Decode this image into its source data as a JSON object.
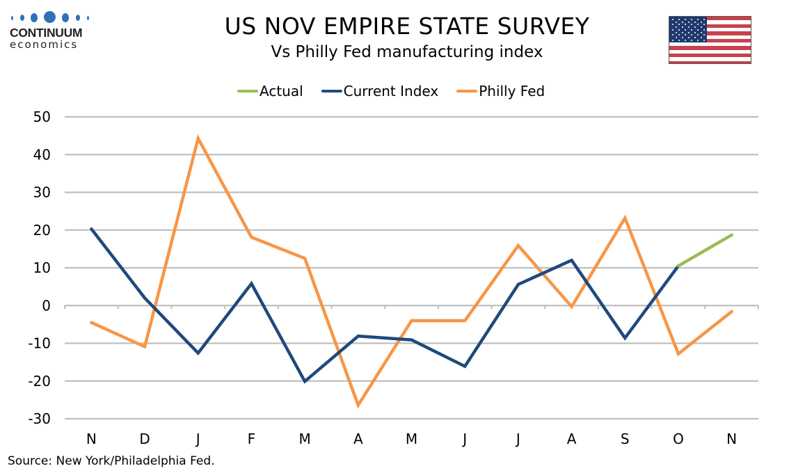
{
  "logo": {
    "name": "CONTINUUM",
    "sub": "economics"
  },
  "header": {
    "title": "US NOV EMPIRE STATE SURVEY",
    "subtitle": "Vs Philly Fed manufacturing index",
    "flag_icon": "us-flag-icon"
  },
  "source": "Source: New York/Philadelphia Fed.",
  "colors": {
    "actual": "#9bbb59",
    "current_index": "#1f497d",
    "philly_fed": "#f79646",
    "grid": "#bfbfbf"
  },
  "chart_data": {
    "type": "line",
    "title": "US NOV EMPIRE STATE SURVEY",
    "subtitle": "Vs Philly Fed manufacturing index",
    "xlabel": "",
    "ylabel": "",
    "categories": [
      "N",
      "D",
      "J",
      "F",
      "M",
      "A",
      "M",
      "J",
      "J",
      "A",
      "S",
      "O",
      "N"
    ],
    "ylim": [
      -30,
      50
    ],
    "yticks": [
      50,
      40,
      30,
      20,
      10,
      0,
      -10,
      -20,
      -30
    ],
    "grid": true,
    "legend_position": "top-center",
    "series": [
      {
        "name": "Actual",
        "color": "#9bbb59",
        "values": [
          null,
          null,
          null,
          null,
          null,
          null,
          null,
          null,
          null,
          null,
          null,
          10.5,
          18.7
        ]
      },
      {
        "name": "Current Index",
        "color": "#1f497d",
        "values": [
          20.3,
          2.0,
          -12.6,
          5.8,
          -20.1,
          -8.1,
          -9.1,
          -16.1,
          5.6,
          12.0,
          -8.6,
          10.5,
          null
        ]
      },
      {
        "name": "Philly Fed",
        "color": "#f79646",
        "values": [
          -4.5,
          -10.9,
          44.3,
          18.1,
          12.5,
          -26.4,
          -4.0,
          -4.0,
          15.9,
          -0.3,
          23.2,
          -12.8,
          -1.6
        ]
      }
    ]
  }
}
